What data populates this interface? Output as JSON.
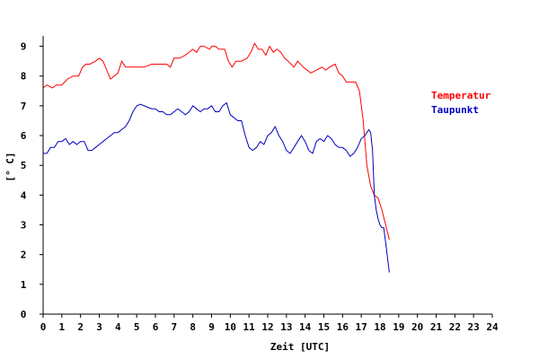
{
  "chart_data": {
    "type": "line",
    "xlabel": "Zeit [UTC]",
    "ylabel": "[° C]",
    "xlim": [
      0,
      24
    ],
    "ylim": [
      0,
      9.5
    ],
    "x_ticks": [
      0,
      1,
      2,
      3,
      4,
      5,
      6,
      7,
      8,
      9,
      10,
      11,
      12,
      13,
      14,
      15,
      16,
      17,
      18,
      19,
      20,
      21,
      22,
      23,
      24
    ],
    "y_ticks": [
      0,
      1,
      2,
      3,
      4,
      5,
      6,
      7,
      8,
      9
    ],
    "legend_position": "right",
    "grid": false,
    "series": [
      {
        "name": "Temperatur",
        "color": "#ff0000",
        "x": [
          0.0,
          0.2,
          0.5,
          0.7,
          1.0,
          1.3,
          1.6,
          1.9,
          2.1,
          2.3,
          2.5,
          2.8,
          3.0,
          3.2,
          3.4,
          3.6,
          3.8,
          4.0,
          4.2,
          4.4,
          4.7,
          5.0,
          5.4,
          5.8,
          6.2,
          6.6,
          6.8,
          7.0,
          7.3,
          7.6,
          8.0,
          8.2,
          8.4,
          8.6,
          8.9,
          9.0,
          9.2,
          9.4,
          9.7,
          9.9,
          10.1,
          10.3,
          10.6,
          10.9,
          11.1,
          11.3,
          11.5,
          11.7,
          11.9,
          12.1,
          12.3,
          12.5,
          12.7,
          12.9,
          13.1,
          13.4,
          13.6,
          13.9,
          14.1,
          14.3,
          14.6,
          14.9,
          15.1,
          15.3,
          15.6,
          15.8,
          16.0,
          16.2,
          16.4,
          16.7,
          16.9,
          17.1,
          17.3,
          17.5,
          17.7,
          17.9,
          18.1,
          18.3,
          18.5
        ],
        "values": [
          7.6,
          7.7,
          7.6,
          7.7,
          7.7,
          7.9,
          8.0,
          8.0,
          8.3,
          8.4,
          8.4,
          8.5,
          8.6,
          8.5,
          8.2,
          7.9,
          8.0,
          8.1,
          8.5,
          8.3,
          8.3,
          8.3,
          8.3,
          8.4,
          8.4,
          8.4,
          8.3,
          8.6,
          8.6,
          8.7,
          8.9,
          8.8,
          9.0,
          9.0,
          8.9,
          9.0,
          9.0,
          8.9,
          8.9,
          8.5,
          8.3,
          8.5,
          8.5,
          8.6,
          8.8,
          9.1,
          8.9,
          8.9,
          8.7,
          9.0,
          8.8,
          8.9,
          8.8,
          8.6,
          8.5,
          8.3,
          8.5,
          8.3,
          8.2,
          8.1,
          8.2,
          8.3,
          8.2,
          8.3,
          8.4,
          8.1,
          8.0,
          7.8,
          7.8,
          7.8,
          7.5,
          6.5,
          5.0,
          4.3,
          4.0,
          3.9,
          3.5,
          3.0,
          2.5
        ]
      },
      {
        "name": "Taupunkt",
        "color": "#0000c0",
        "x": [
          0.0,
          0.2,
          0.4,
          0.6,
          0.8,
          1.0,
          1.2,
          1.4,
          1.6,
          1.8,
          2.0,
          2.2,
          2.4,
          2.6,
          2.8,
          3.0,
          3.2,
          3.4,
          3.6,
          3.8,
          4.0,
          4.2,
          4.4,
          4.6,
          4.8,
          5.0,
          5.2,
          5.4,
          5.6,
          5.8,
          6.0,
          6.2,
          6.4,
          6.6,
          6.8,
          7.0,
          7.2,
          7.4,
          7.6,
          7.8,
          8.0,
          8.2,
          8.4,
          8.6,
          8.8,
          9.0,
          9.2,
          9.4,
          9.6,
          9.8,
          10.0,
          10.2,
          10.4,
          10.6,
          10.8,
          11.0,
          11.2,
          11.4,
          11.6,
          11.8,
          12.0,
          12.2,
          12.4,
          12.6,
          12.8,
          13.0,
          13.2,
          13.4,
          13.6,
          13.8,
          14.0,
          14.2,
          14.4,
          14.6,
          14.8,
          15.0,
          15.2,
          15.4,
          15.6,
          15.8,
          16.0,
          16.2,
          16.4,
          16.6,
          16.8,
          17.0,
          17.2,
          17.4,
          17.5,
          17.6,
          17.7,
          17.8,
          17.9,
          18.0,
          18.1,
          18.2,
          18.3,
          18.5
        ],
        "values": [
          5.4,
          5.4,
          5.6,
          5.6,
          5.8,
          5.8,
          5.9,
          5.7,
          5.8,
          5.7,
          5.8,
          5.8,
          5.5,
          5.5,
          5.6,
          5.7,
          5.8,
          5.9,
          6.0,
          6.1,
          6.1,
          6.2,
          6.3,
          6.5,
          6.8,
          7.0,
          7.05,
          7.0,
          6.95,
          6.9,
          6.9,
          6.8,
          6.8,
          6.7,
          6.7,
          6.8,
          6.9,
          6.8,
          6.7,
          6.8,
          7.0,
          6.9,
          6.8,
          6.9,
          6.9,
          7.0,
          6.8,
          6.8,
          7.0,
          7.1,
          6.7,
          6.6,
          6.5,
          6.5,
          6.0,
          5.6,
          5.5,
          5.6,
          5.8,
          5.7,
          6.0,
          6.1,
          6.3,
          6.0,
          5.8,
          5.5,
          5.4,
          5.6,
          5.8,
          6.0,
          5.8,
          5.5,
          5.4,
          5.8,
          5.9,
          5.8,
          6.0,
          5.9,
          5.7,
          5.6,
          5.6,
          5.5,
          5.3,
          5.4,
          5.6,
          5.9,
          6.0,
          6.2,
          6.1,
          5.5,
          4.0,
          3.5,
          3.2,
          3.0,
          2.9,
          2.9,
          2.4,
          1.4
        ]
      }
    ]
  }
}
